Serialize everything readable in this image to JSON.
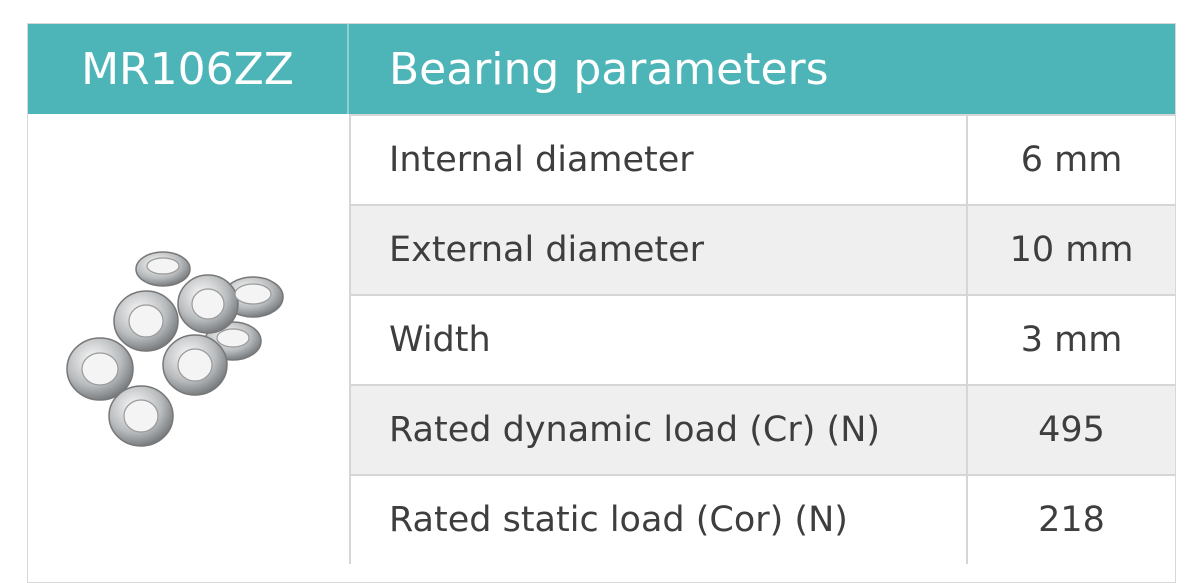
{
  "header": {
    "model": "MR106ZZ",
    "title": "Bearing parameters"
  },
  "table": {
    "rows": [
      [
        "Internal diameter",
        "6 mm"
      ],
      [
        "External diameter",
        "10 mm"
      ],
      [
        "Width",
        "3 mm"
      ],
      [
        "Rated dynamic load (Cr) (N)",
        "495"
      ],
      [
        "Rated static load (Cor) (N)",
        "218"
      ]
    ]
  }
}
